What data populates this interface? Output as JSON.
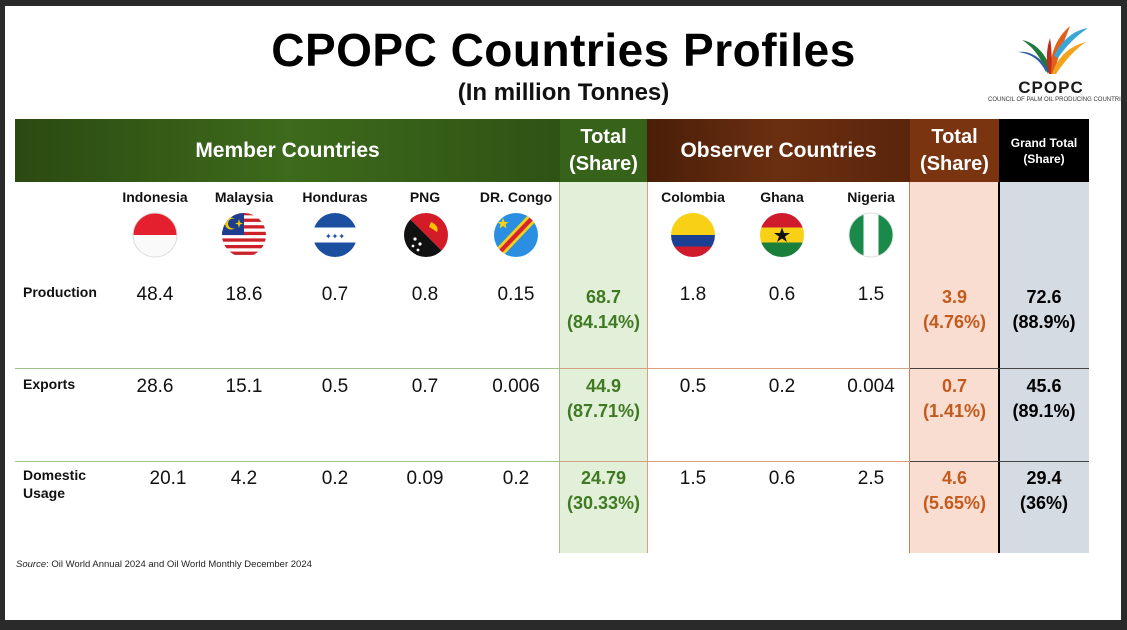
{
  "title": "CPOPC Countries Profiles",
  "subtitle": "(In million Tonnes)",
  "logo": {
    "name": "CPOPC",
    "subtitle": "COUNCIL OF PALM OIL PRODUCING COUNTRIES"
  },
  "headers": {
    "member": "Member Countries",
    "total_line1": "Total",
    "total_line2": "(Share)",
    "observer": "Observer Countries",
    "grand_line1": "Grand Total",
    "grand_line2": "(Share)"
  },
  "countries": {
    "indonesia": "Indonesia",
    "malaysia": "Malaysia",
    "honduras": "Honduras",
    "png": "PNG",
    "drcongo": "DR. Congo",
    "colombia": "Colombia",
    "ghana": "Ghana",
    "nigeria": "Nigeria"
  },
  "flag_icons": [
    "indonesia-flag-icon",
    "malaysia-flag-icon",
    "honduras-flag-icon",
    "png-flag-icon",
    "drcongo-flag-icon",
    "colombia-flag-icon",
    "ghana-flag-icon",
    "nigeria-flag-icon"
  ],
  "rows": {
    "production": {
      "label": "Production",
      "indonesia": "48.4",
      "malaysia": "18.6",
      "honduras": "0.7",
      "png": "0.8",
      "drcongo": "0.15",
      "member_total": "68.7",
      "member_share": "(84.14%)",
      "colombia": "1.8",
      "ghana": "0.6",
      "nigeria": "1.5",
      "observer_total": "3.9",
      "observer_share": "(4.76%)",
      "grand_total": "72.6",
      "grand_share": "(88.9%)"
    },
    "exports": {
      "label": "Exports",
      "indonesia": "28.6",
      "malaysia": "15.1",
      "honduras": "0.5",
      "png": "0.7",
      "drcongo": "0.006",
      "member_total": "44.9",
      "member_share": "(87.71%)",
      "colombia": "0.5",
      "ghana": "0.2",
      "nigeria": "0.004",
      "observer_total": "0.7",
      "observer_share": "(1.41%)",
      "grand_total": "45.6",
      "grand_share": "(89.1%)"
    },
    "domestic": {
      "label_line1": "Domestic",
      "label_line2": "Usage",
      "indonesia": "20.1",
      "malaysia": "4.2",
      "honduras": "0.2",
      "png": "0.09",
      "drcongo": "0.2",
      "member_total": "24.79",
      "member_share": "(30.33%)",
      "colombia": "1.5",
      "ghana": "0.6",
      "nigeria": "2.5",
      "observer_total": "4.6",
      "observer_share": "(5.65%)",
      "grand_total": "29.4",
      "grand_share": "(36%)"
    }
  },
  "source": {
    "prefix": "Source",
    "text": ": Oil World Annual 2024 and Oil World Monthly December 2024"
  },
  "colors": {
    "member_green": "#3d6a1b",
    "observer_brown": "#6b2f10",
    "total_green_text": "#3f7a22",
    "total_orange_text": "#c35a1e"
  }
}
